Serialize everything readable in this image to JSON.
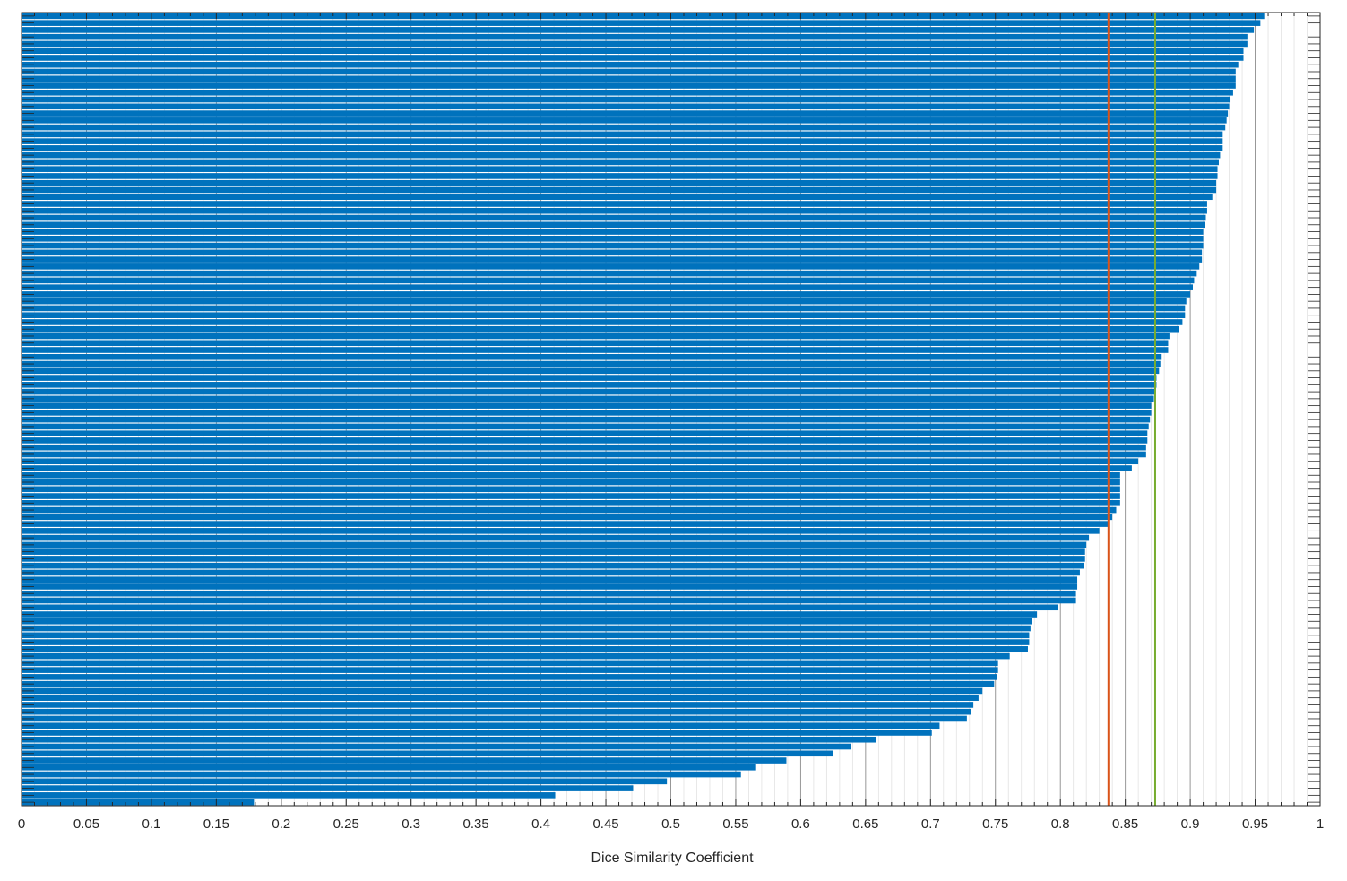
{
  "chart_data": {
    "type": "bar",
    "orientation": "horizontal",
    "xlabel": "Dice Similarity Coefficient",
    "xlim": [
      0,
      1
    ],
    "xticks": [
      "0",
      "0.05",
      "0.1",
      "0.15",
      "0.2",
      "0.25",
      "0.3",
      "0.35",
      "0.4",
      "0.45",
      "0.5",
      "0.55",
      "0.6",
      "0.65",
      "0.7",
      "0.75",
      "0.8",
      "0.85",
      "0.9",
      "0.95",
      "1"
    ],
    "grid": "vertical minor and major lines",
    "bar_color": "#0072BD",
    "values": [
      0.957,
      0.954,
      0.949,
      0.944,
      0.944,
      0.941,
      0.941,
      0.937,
      0.935,
      0.935,
      0.935,
      0.933,
      0.931,
      0.93,
      0.929,
      0.928,
      0.927,
      0.925,
      0.925,
      0.925,
      0.923,
      0.922,
      0.921,
      0.921,
      0.92,
      0.92,
      0.917,
      0.913,
      0.913,
      0.912,
      0.911,
      0.91,
      0.91,
      0.91,
      0.909,
      0.909,
      0.907,
      0.905,
      0.903,
      0.902,
      0.9,
      0.897,
      0.896,
      0.896,
      0.894,
      0.891,
      0.884,
      0.883,
      0.883,
      0.878,
      0.877,
      0.876,
      0.874,
      0.874,
      0.873,
      0.872,
      0.87,
      0.87,
      0.869,
      0.868,
      0.867,
      0.867,
      0.866,
      0.866,
      0.86,
      0.855,
      0.846,
      0.846,
      0.846,
      0.846,
      0.846,
      0.843,
      0.84,
      0.837,
      0.83,
      0.822,
      0.82,
      0.819,
      0.819,
      0.818,
      0.815,
      0.813,
      0.813,
      0.812,
      0.812,
      0.798,
      0.782,
      0.778,
      0.777,
      0.776,
      0.776,
      0.775,
      0.761,
      0.752,
      0.752,
      0.751,
      0.749,
      0.74,
      0.737,
      0.733,
      0.731,
      0.728,
      0.707,
      0.701,
      0.658,
      0.639,
      0.625,
      0.589,
      0.565,
      0.554,
      0.497,
      0.471,
      0.411,
      0.179
    ],
    "reference_lines": [
      {
        "value": 0.837,
        "color": "#D95319"
      },
      {
        "value": 0.873,
        "color": "#77AC30"
      }
    ]
  }
}
